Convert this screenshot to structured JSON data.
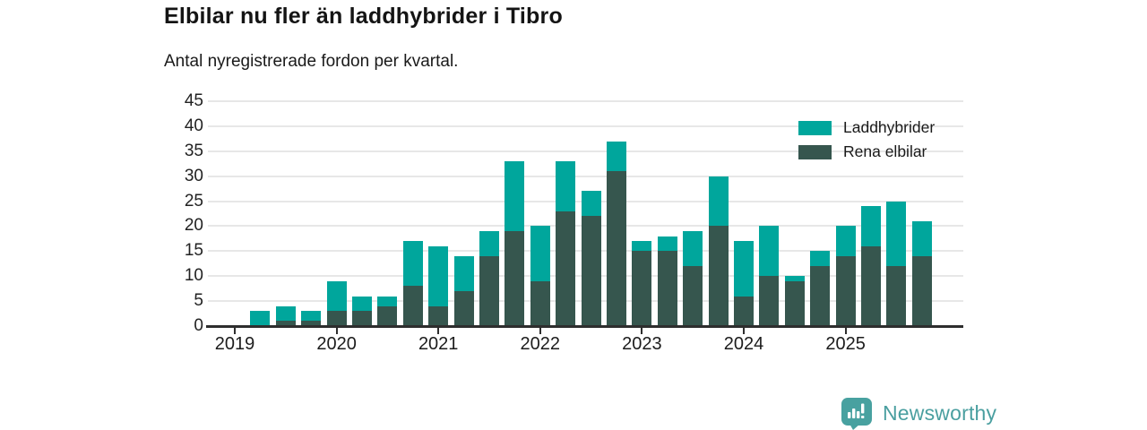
{
  "header": {
    "title": "Elbilar nu fler än laddhybrider i Tibro",
    "subtitle": "Antal nyregistrerade fordon per kvartal."
  },
  "legend": {
    "items": [
      {
        "label": "Laddhybrider",
        "color": "#00a69c"
      },
      {
        "label": "Rena elbilar",
        "color": "#36564e"
      }
    ]
  },
  "footer": {
    "brand": "Newsworthy",
    "logo_icon": "bar-chart-speech-bubble-icon",
    "brand_color": "#48a1a0"
  },
  "chart_data": {
    "type": "bar",
    "stacked": true,
    "title": "Elbilar nu fler än laddhybrider i Tibro",
    "subtitle": "Antal nyregistrerade fordon per kvartal.",
    "xlabel": "",
    "ylabel": "",
    "ylim": [
      0,
      45
    ],
    "yticks": [
      0,
      5,
      10,
      15,
      20,
      25,
      30,
      35,
      40,
      45
    ],
    "grid": true,
    "legend_position": "top-right",
    "x": [
      "2019 Q1",
      "2019 Q2",
      "2019 Q3",
      "2019 Q4",
      "2020 Q1",
      "2020 Q2",
      "2020 Q3",
      "2020 Q4",
      "2021 Q1",
      "2021 Q2",
      "2021 Q3",
      "2021 Q4",
      "2022 Q1",
      "2022 Q2",
      "2022 Q3",
      "2022 Q4",
      "2023 Q1",
      "2023 Q2",
      "2023 Q3",
      "2023 Q4",
      "2024 Q1",
      "2024 Q2",
      "2024 Q3",
      "2024 Q4",
      "2025 Q1",
      "2025 Q2",
      "2025 Q3",
      "2025 Q4"
    ],
    "year_labels": [
      "2019",
      "2020",
      "2021",
      "2022",
      "2023",
      "2024",
      "2025"
    ],
    "series": [
      {
        "name": "Rena elbilar",
        "color": "#36564e",
        "stack": "bottom",
        "values": [
          0,
          0,
          1,
          1,
          3,
          3,
          4,
          8,
          4,
          7,
          14,
          19,
          9,
          23,
          22,
          31,
          15,
          15,
          12,
          20,
          6,
          10,
          9,
          12,
          14,
          16,
          12,
          14
        ]
      },
      {
        "name": "Laddhybrider",
        "color": "#00a69c",
        "stack": "top",
        "values": [
          0,
          3,
          3,
          2,
          6,
          3,
          2,
          9,
          12,
          7,
          5,
          14,
          11,
          10,
          5,
          6,
          2,
          3,
          7,
          10,
          11,
          10,
          1,
          3,
          6,
          8,
          13,
          7
        ]
      }
    ],
    "totals": [
      0,
      3,
      4,
      3,
      9,
      6,
      6,
      17,
      16,
      14,
      19,
      33,
      20,
      33,
      27,
      37,
      17,
      18,
      19,
      30,
      17,
      20,
      10,
      15,
      20,
      24,
      25,
      21
    ]
  }
}
